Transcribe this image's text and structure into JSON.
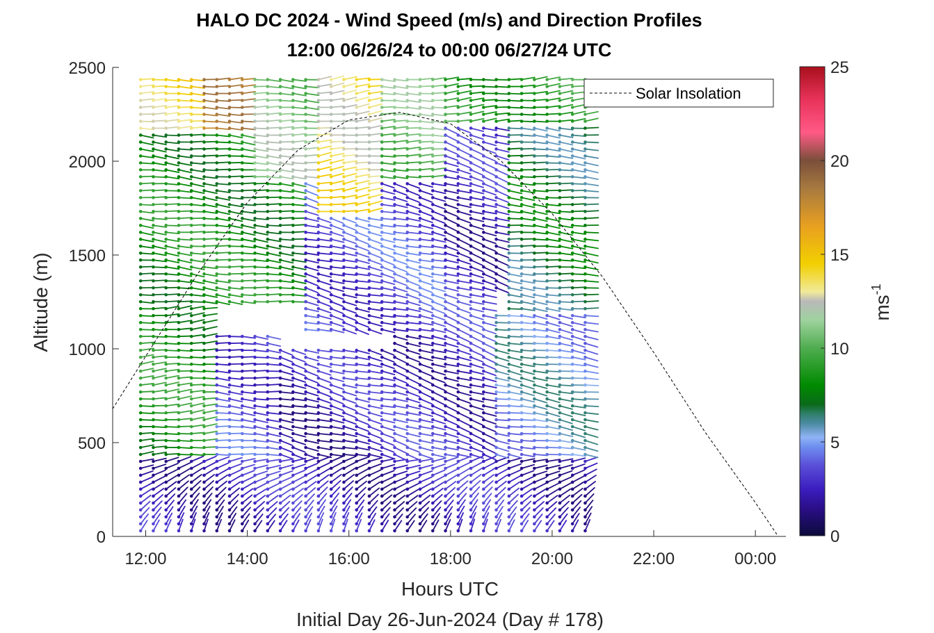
{
  "chart_data": {
    "type": "scatter",
    "title": "HALO DC 2024 - Wind Speed (m/s) and Direction Profiles",
    "subtitle": "12:00 06/26/24 to 00:00 06/27/24  UTC",
    "xlabel": "Hours UTC",
    "xlabel2": "Initial Day 26-Jun-2024 (Day # 178)",
    "ylabel": "Altitude (m)",
    "x_ticks": [
      "12:00",
      "14:00",
      "16:00",
      "18:00",
      "20:00",
      "22:00",
      "00:00"
    ],
    "x_tick_hours": [
      12,
      14,
      16,
      18,
      20,
      22,
      24
    ],
    "xlim_hours": [
      11.35,
      24.6
    ],
    "y_ticks": [
      "0",
      "500",
      "1000",
      "1500",
      "2000",
      "2500"
    ],
    "ylim": [
      0,
      2500
    ],
    "colorbar": {
      "label": "ms",
      "label_exponent": "-1",
      "ticks": [
        "0",
        "5",
        "10",
        "15",
        "20",
        "25"
      ],
      "range": [
        0,
        25
      ]
    },
    "legend": {
      "position": "top-right",
      "entries": [
        "Solar Insolation"
      ]
    },
    "grid": false,
    "wind_barbs": {
      "time_start_hours": 11.9,
      "time_end_hours": 20.8,
      "time_step_hours": 0.25,
      "alt_start_m": 30,
      "alt_end_m": 2450,
      "alt_step_m": 37,
      "speed_regions": [
        {
          "t0": 11.9,
          "t1": 20.9,
          "a0": 0,
          "a1": 420,
          "speed": 2.5,
          "dir": 200
        },
        {
          "t0": 11.9,
          "t1": 13.2,
          "a0": 420,
          "a1": 1250,
          "speed": 8.5,
          "dir": 265
        },
        {
          "t0": 13.2,
          "t1": 14.5,
          "a0": 420,
          "a1": 1100,
          "speed": 3.5,
          "dir": 275
        },
        {
          "t0": 14.5,
          "t1": 16.8,
          "a0": 420,
          "a1": 1000,
          "speed": 2.5,
          "dir": 285
        },
        {
          "t0": 16.8,
          "t1": 18.8,
          "a0": 420,
          "a1": 1300,
          "speed": 2.8,
          "dir": 290
        },
        {
          "t0": 18.8,
          "t1": 20.9,
          "a0": 420,
          "a1": 1200,
          "speed": 5.2,
          "dir": 280
        },
        {
          "t0": 11.9,
          "t1": 15.0,
          "a0": 1250,
          "a1": 2150,
          "speed": 8.2,
          "dir": 275
        },
        {
          "t0": 15.0,
          "t1": 17.8,
          "a0": 1100,
          "a1": 1900,
          "speed": 3.5,
          "dir": 285
        },
        {
          "t0": 17.8,
          "t1": 19.0,
          "a0": 1300,
          "a1": 2200,
          "speed": 2.6,
          "dir": 290
        },
        {
          "t0": 19.0,
          "t1": 20.9,
          "a0": 1200,
          "a1": 2500,
          "speed": 7.0,
          "dir": 275
        },
        {
          "t0": 11.9,
          "t1": 13.0,
          "a0": 2150,
          "a1": 2500,
          "speed": 14.0,
          "dir": 270
        },
        {
          "t0": 13.0,
          "t1": 14.1,
          "a0": 2150,
          "a1": 2500,
          "speed": 17.5,
          "dir": 270
        },
        {
          "t0": 14.1,
          "t1": 15.3,
          "a0": 1900,
          "a1": 2500,
          "speed": 11.0,
          "dir": 272
        },
        {
          "t0": 15.3,
          "t1": 16.5,
          "a0": 1700,
          "a1": 2500,
          "speed": 13.5,
          "dir": 262
        },
        {
          "t0": 16.5,
          "t1": 17.8,
          "a0": 1900,
          "a1": 2500,
          "speed": 10.5,
          "dir": 270
        },
        {
          "t0": 17.8,
          "t1": 20.9,
          "a0": 2200,
          "a1": 2500,
          "speed": 9.0,
          "dir": 265
        }
      ]
    },
    "solar_insolation": {
      "style": "dashed",
      "color": "#000000",
      "points_hours_alt": [
        [
          11.35,
          680
        ],
        [
          12.0,
          960
        ],
        [
          13.0,
          1390
        ],
        [
          14.0,
          1780
        ],
        [
          15.0,
          2060
        ],
        [
          16.0,
          2220
        ],
        [
          17.0,
          2260
        ],
        [
          18.0,
          2200
        ],
        [
          19.0,
          2000
        ],
        [
          20.0,
          1720
        ],
        [
          21.0,
          1380
        ],
        [
          22.0,
          980
        ],
        [
          23.0,
          560
        ],
        [
          24.0,
          180
        ],
        [
          24.45,
          0
        ]
      ]
    }
  }
}
